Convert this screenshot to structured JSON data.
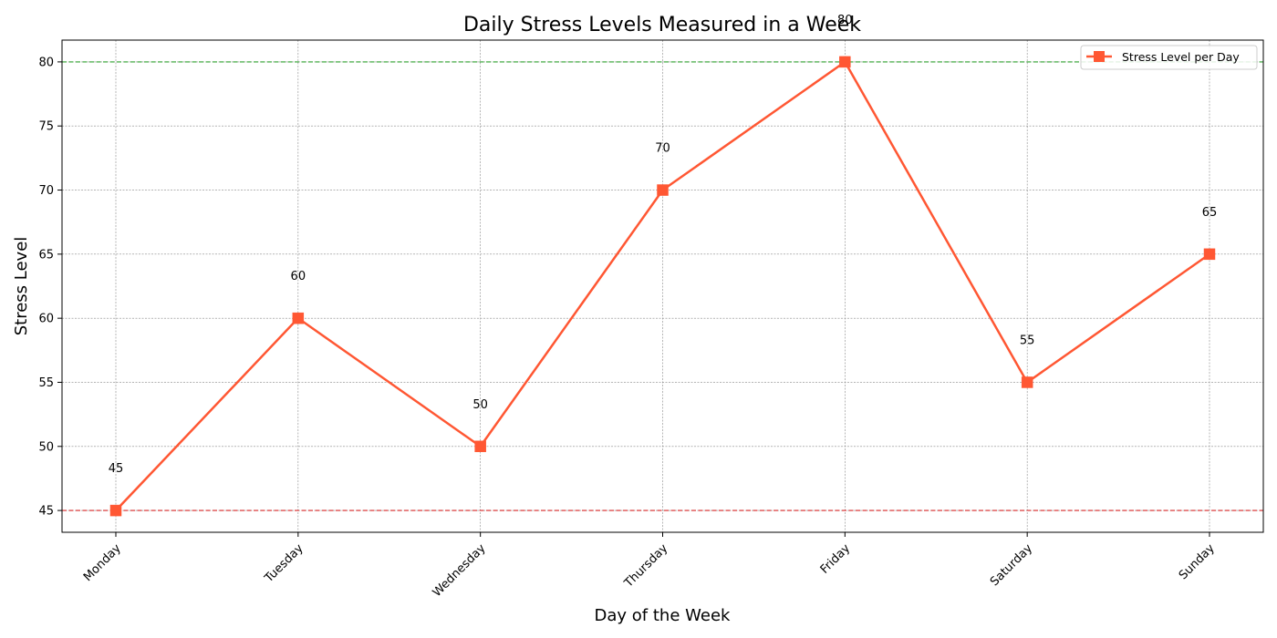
{
  "chart_data": {
    "type": "line",
    "title": "Daily Stress Levels Measured in a Week",
    "xlabel": "Day of the Week",
    "ylabel": "Stress Level",
    "categories": [
      "Monday",
      "Tuesday",
      "Wednesday",
      "Thursday",
      "Friday",
      "Saturday",
      "Sunday"
    ],
    "series": [
      {
        "name": "Stress Level per Day",
        "values": [
          45,
          60,
          50,
          70,
          80,
          55,
          65
        ],
        "color": "#FF5733",
        "marker": "square"
      }
    ],
    "ylim": [
      43.3,
      81.7
    ],
    "yticks": [
      45,
      50,
      55,
      60,
      65,
      70,
      75,
      80
    ],
    "reference_lines": [
      {
        "value": 80,
        "color": "#2ca02c",
        "style": "dashed"
      },
      {
        "value": 45,
        "color": "#d62728",
        "style": "dashed"
      }
    ],
    "grid": true,
    "legend_position": "top-right",
    "data_labels": true,
    "xtick_rotation": 45
  }
}
